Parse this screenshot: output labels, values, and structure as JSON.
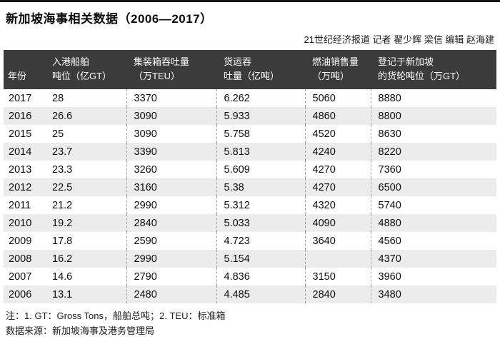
{
  "page": {
    "title": "新加坡海事相关数据（2006—2017）",
    "byline": "21世纪经济报道 记者 翟少辉 梁信 编辑 赵海建",
    "note": "注：1. GT：Gross Tons，船舶总吨；2. TEU：标准箱",
    "source": "数据来源：新加坡海事及港务管理局"
  },
  "table": {
    "header": [
      {
        "line1": "",
        "line2": "年份"
      },
      {
        "line1": "入港船舶",
        "line2": "吨位（亿GT）"
      },
      {
        "line1": "集装箱吞吐量",
        "line2": "（万TEU）"
      },
      {
        "line1": "货运吞",
        "line2": "吐量（亿吨）"
      },
      {
        "line1": "燃油销售量",
        "line2": "（万吨）"
      },
      {
        "line1": "登记于新加坡",
        "line2": "的货轮吨位（万GT）"
      }
    ]
  },
  "colors": {
    "header_bg": "#3b3b3b",
    "header_text": "#ffffff",
    "alt_row_bg": "#ececec",
    "top_rule": "#151515",
    "column_divider": "#9b9b9b"
  },
  "chart_data": {
    "type": "table",
    "title": "新加坡海事相关数据（2006—2017）",
    "columns": [
      "年份",
      "入港船舶吨位（亿GT）",
      "集装箱吞吐量（万TEU）",
      "货运吞吐量（亿吨）",
      "燃油销售量（万吨）",
      "登记于新加坡的货轮吨位（万GT）"
    ],
    "rows": [
      [
        "2017",
        "28",
        "3370",
        "6.262",
        "5060",
        "8880"
      ],
      [
        "2016",
        "26.6",
        "3090",
        "5.933",
        "4860",
        "8800"
      ],
      [
        "2015",
        "25",
        "3090",
        "5.758",
        "4520",
        "8630"
      ],
      [
        "2014",
        "23.7",
        "3390",
        "5.813",
        "4240",
        "8220"
      ],
      [
        "2013",
        "23.3",
        "3260",
        "5.609",
        "4270",
        "7360"
      ],
      [
        "2012",
        "22.5",
        "3160",
        "5.38",
        "4270",
        "6500"
      ],
      [
        "2011",
        "21.2",
        "2990",
        "5.312",
        "4320",
        "5740"
      ],
      [
        "2010",
        "19.2",
        "2840",
        "5.033",
        "4090",
        "4880"
      ],
      [
        "2009",
        "17.8",
        "2590",
        "4.723",
        "3640",
        "4560"
      ],
      [
        "2008",
        "16.2",
        "2990",
        "5.154",
        "",
        "4370"
      ],
      [
        "2007",
        "14.6",
        "2790",
        "4.836",
        "3150",
        "3960"
      ],
      [
        "2006",
        "13.1",
        "2480",
        "4.485",
        "2840",
        "3480"
      ]
    ]
  }
}
